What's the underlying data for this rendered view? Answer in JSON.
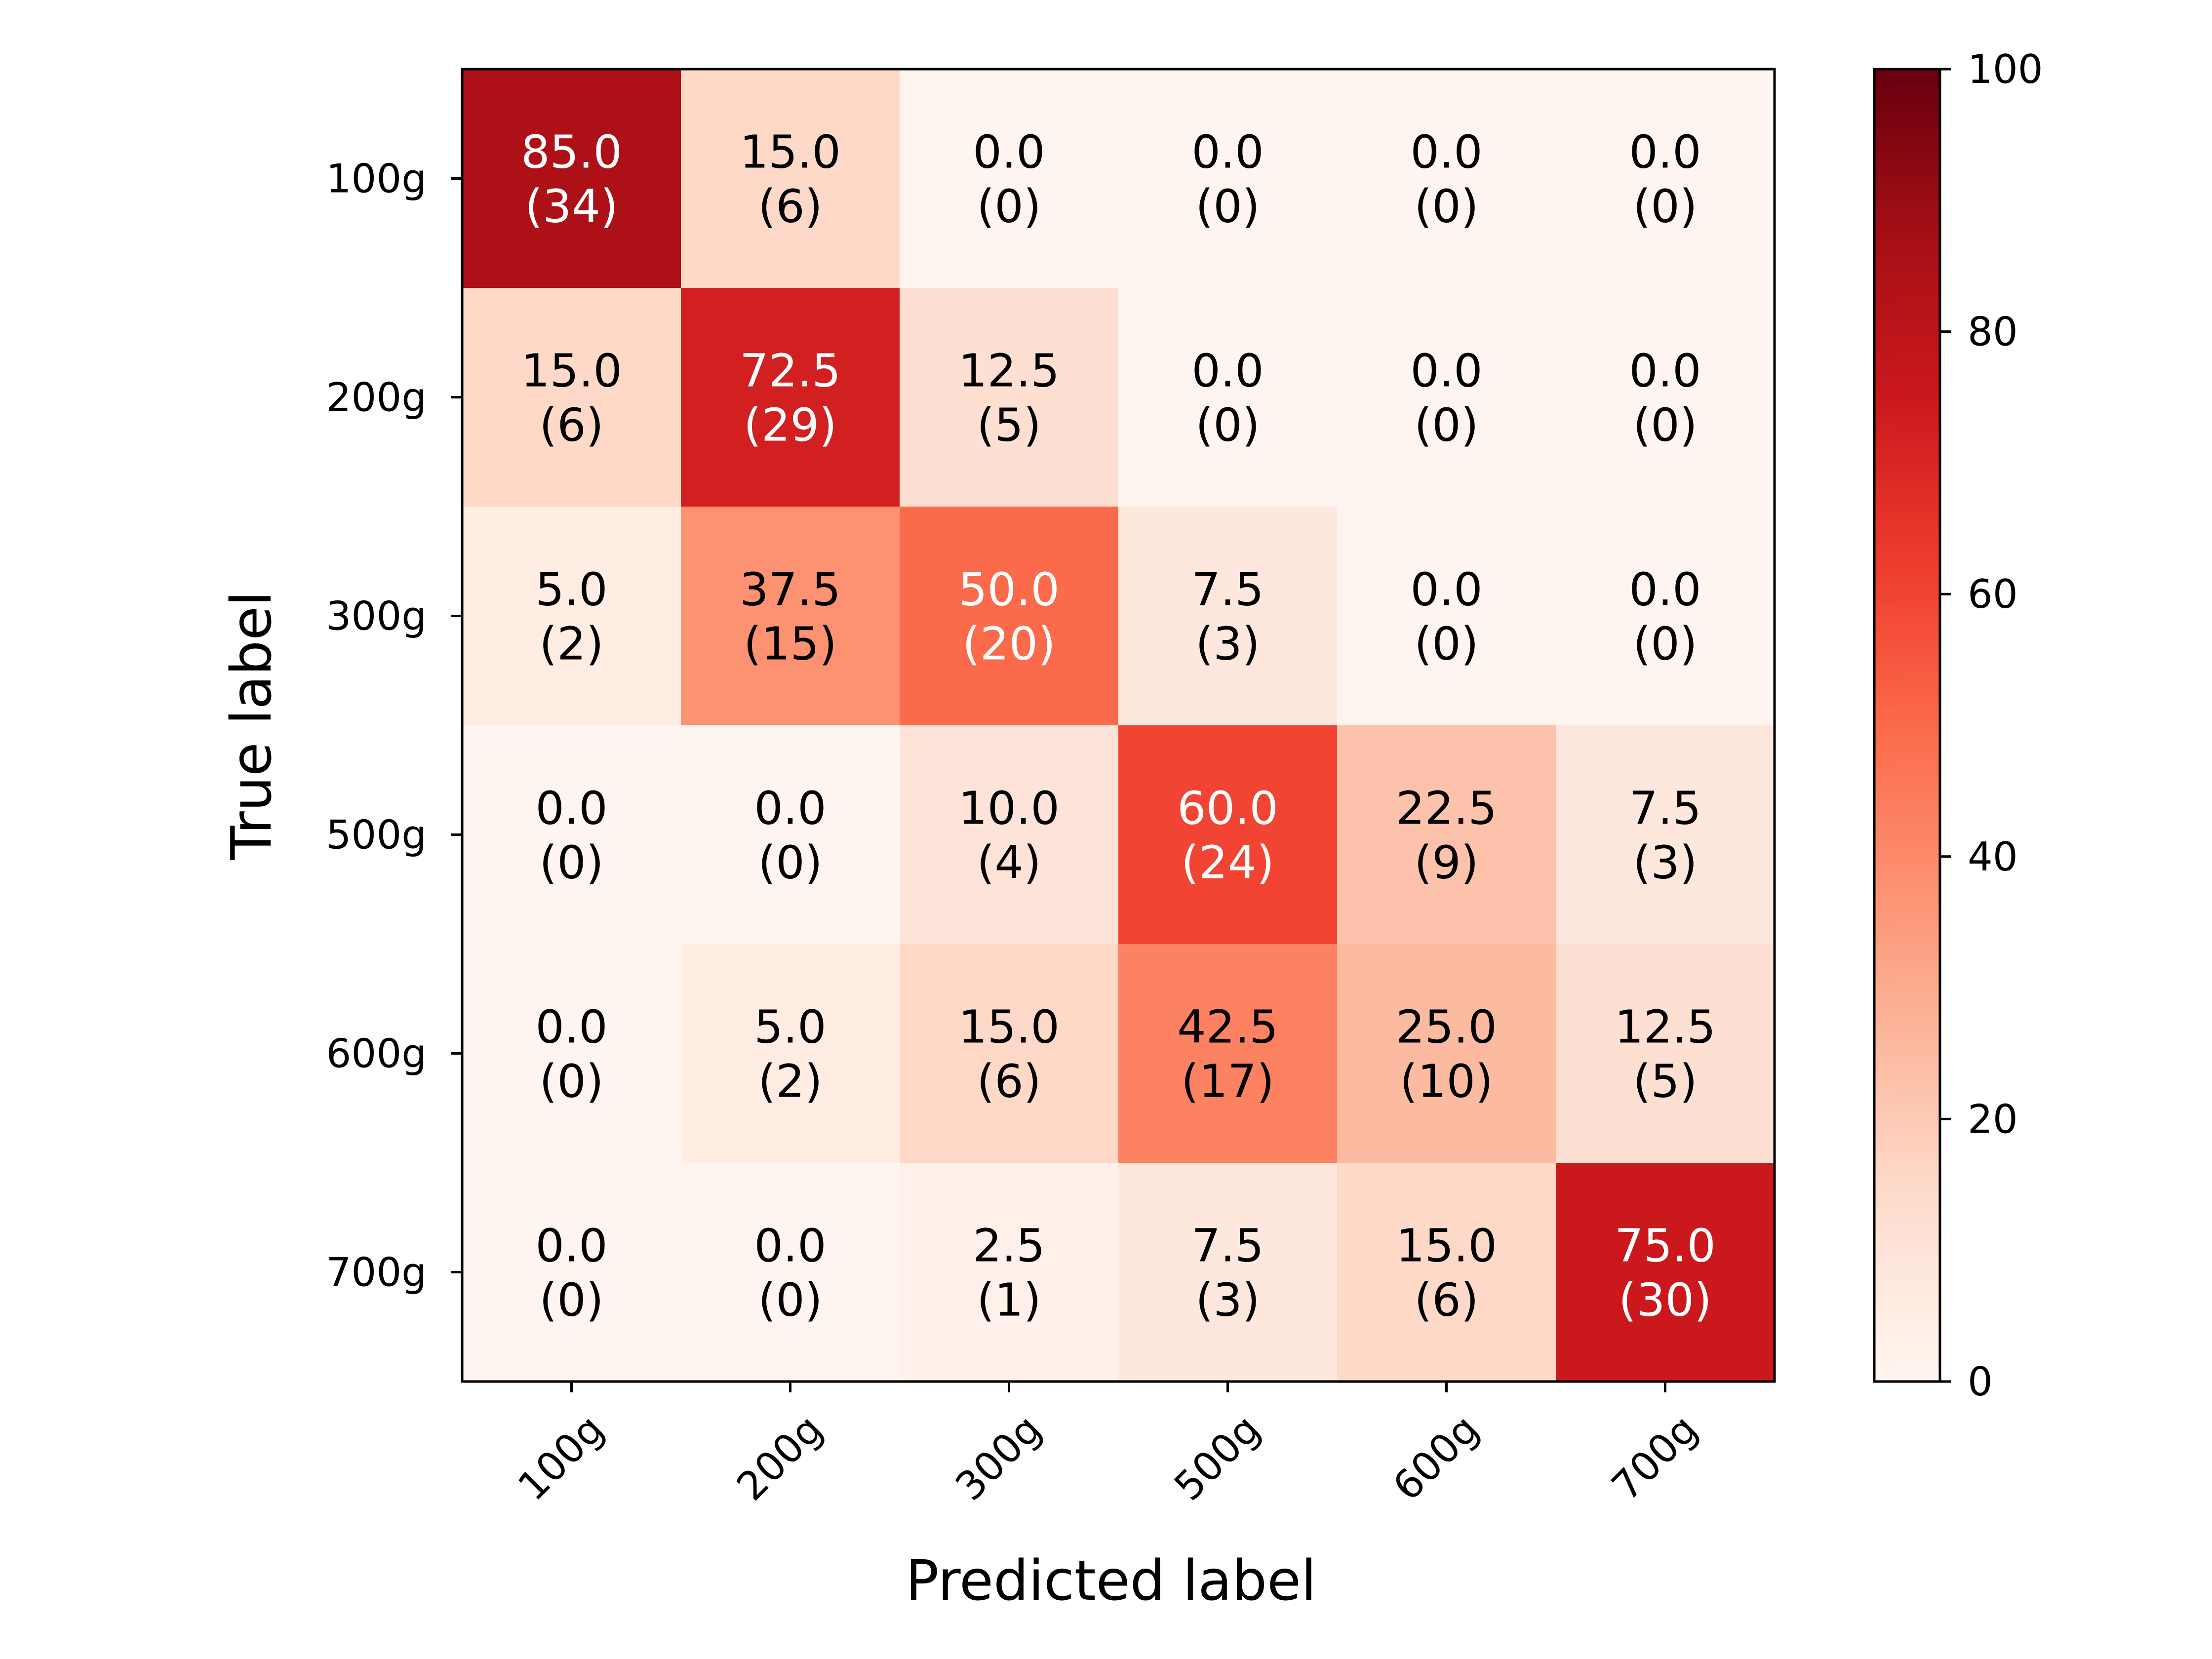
{
  "chart_data": {
    "type": "heatmap",
    "x_categories": [
      "100g",
      "200g",
      "300g",
      "500g",
      "600g",
      "700g"
    ],
    "y_categories": [
      "100g",
      "200g",
      "300g",
      "500g",
      "600g",
      "700g"
    ],
    "xlabel": "Predicted label",
    "ylabel": "True label",
    "values": [
      [
        85.0,
        15.0,
        0.0,
        0.0,
        0.0,
        0.0
      ],
      [
        15.0,
        72.5,
        12.5,
        0.0,
        0.0,
        0.0
      ],
      [
        5.0,
        37.5,
        50.0,
        7.5,
        0.0,
        0.0
      ],
      [
        0.0,
        0.0,
        10.0,
        60.0,
        22.5,
        7.5
      ],
      [
        0.0,
        5.0,
        15.0,
        42.5,
        25.0,
        12.5
      ],
      [
        0.0,
        0.0,
        2.5,
        7.5,
        15.0,
        75.0
      ]
    ],
    "counts": [
      [
        34,
        6,
        0,
        0,
        0,
        0
      ],
      [
        6,
        29,
        5,
        0,
        0,
        0
      ],
      [
        2,
        15,
        20,
        3,
        0,
        0
      ],
      [
        0,
        0,
        4,
        24,
        9,
        3
      ],
      [
        0,
        2,
        6,
        17,
        10,
        5
      ],
      [
        0,
        0,
        1,
        3,
        6,
        30
      ]
    ],
    "value_format": "{value}\n({count})",
    "color_range": [
      0,
      100
    ],
    "colorbar_ticks": [
      0,
      20,
      40,
      60,
      80,
      100
    ],
    "colormap": "Reds",
    "x_tick_rotation": 45,
    "grid": false
  }
}
